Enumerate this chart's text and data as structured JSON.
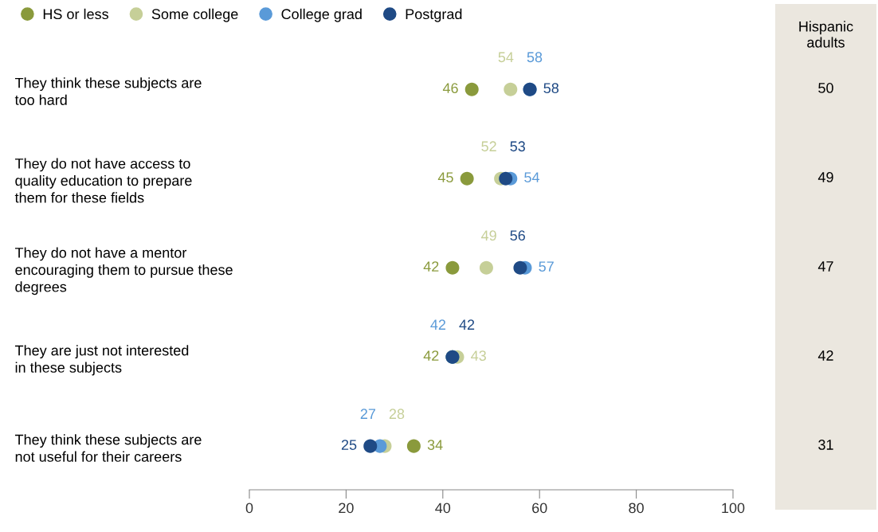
{
  "chart_data": [
    {
      "type": "scatter",
      "orientation": "horizontal",
      "categories": [
        "They think these subjects are\ntoo hard",
        "They do not have access to\nquality education to prepare\nthem for these fields",
        "They do not have a mentor\nencouraging them to pursue these\ndegrees",
        "They are just not interested\nin these subjects",
        "They think these subjects are\nnot useful for their careers"
      ],
      "series": [
        {
          "name": "HS or less",
          "color": "#8a9a3c",
          "values": [
            46,
            45,
            42,
            42,
            34
          ]
        },
        {
          "name": "Some college",
          "color": "#c6cf98",
          "values": [
            54,
            52,
            49,
            43,
            28
          ]
        },
        {
          "name": "College grad",
          "color": "#5a9ad8",
          "values": [
            58,
            54,
            57,
            42,
            27
          ]
        },
        {
          "name": "Postgrad",
          "color": "#1f4a85",
          "values": [
            58,
            53,
            56,
            42,
            25
          ]
        }
      ],
      "xlim": [
        0,
        100
      ],
      "xticks": [
        0,
        20,
        40,
        60,
        80,
        100
      ],
      "data_labels": true,
      "legend": "top",
      "marker": "circle"
    },
    {
      "type": "other",
      "title": "Hispanic\nadults",
      "categories": [
        null,
        null,
        null,
        null,
        null
      ],
      "values": [
        50,
        49,
        47,
        42,
        31
      ],
      "data_labels": true,
      "color": "#ebe7df"
    }
  ]
}
